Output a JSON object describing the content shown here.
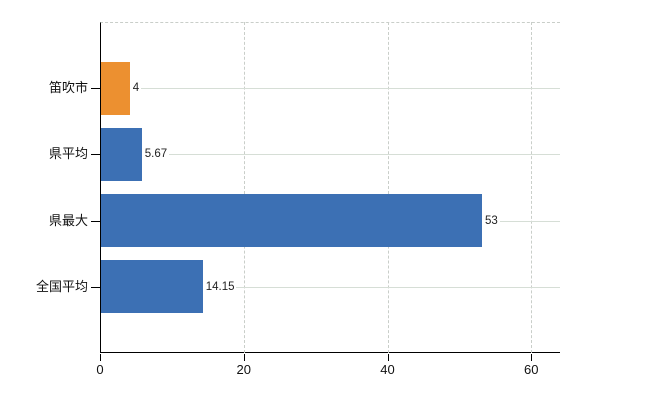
{
  "chart_data": {
    "type": "bar",
    "orientation": "horizontal",
    "title": "",
    "xlabel": "",
    "ylabel": "",
    "categories": [
      "笛吹市",
      "県平均",
      "県最大",
      "全国平均"
    ],
    "values": [
      4,
      5.67,
      53,
      14.15
    ],
    "value_labels": [
      "4",
      "5.67",
      "53",
      "14.15"
    ],
    "x_ticks": [
      0,
      20,
      40,
      60
    ],
    "x_tick_labels": [
      "0",
      "20",
      "40",
      "60"
    ],
    "xlim": [
      0,
      64
    ],
    "grid": true,
    "legend": "none",
    "bar_colors": [
      "#EC9030",
      "#3C70B4",
      "#3C70B4",
      "#3C70B4"
    ]
  },
  "colors": {
    "highlight_bar": "#EC9030",
    "default_bar": "#3C70B4",
    "axis": "#000000",
    "dashed_grid": "#c9cec9",
    "row_grid": "#d6ded6",
    "text": "#111111",
    "value_text": "#222222",
    "background": "#ffffff"
  }
}
